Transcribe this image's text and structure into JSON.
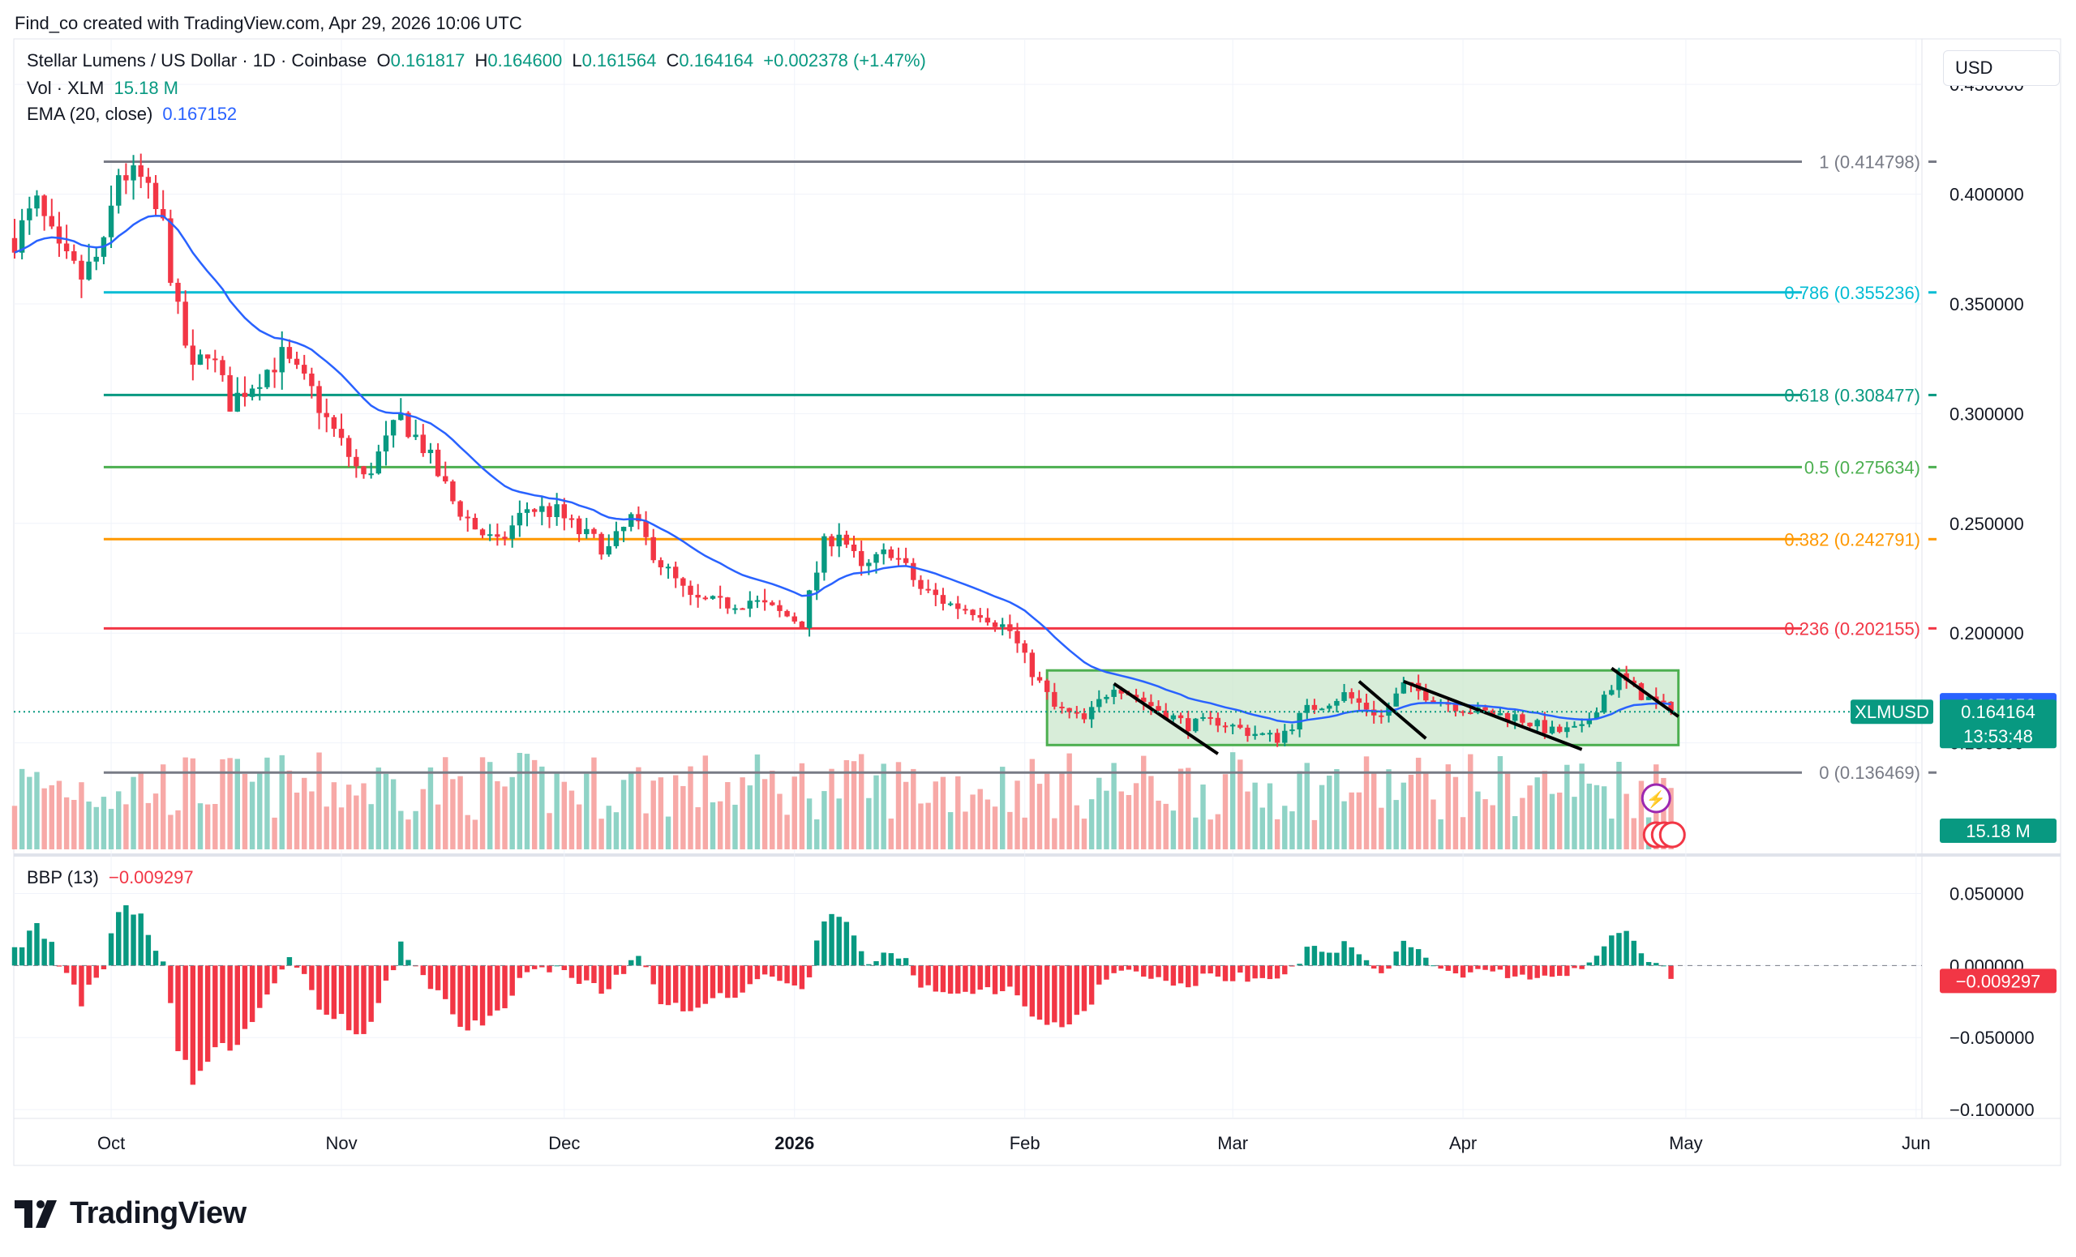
{
  "header": {
    "text": "Find_co created with TradingView.com, Apr 29, 2026 10:06 UTC"
  },
  "legend": {
    "symbol": "Stellar Lumens / US Dollar · 1D · Coinbase",
    "open_label": "O",
    "open": "0.161817",
    "high_label": "H",
    "high": "0.164600",
    "low_label": "L",
    "low": "0.161564",
    "close_label": "C",
    "close": "0.164164",
    "change": "+0.002378 (+1.47%)",
    "vol_label": "Vol · XLM",
    "vol": "15.18 M",
    "ema_label": "EMA (20, close)",
    "ema": "0.167152"
  },
  "bbp_legend": {
    "label": "BBP (13)",
    "value": "−0.009297"
  },
  "currency_button": "USD",
  "price_axis": {
    "ticks": [
      "0.450000",
      "0.400000",
      "0.350000",
      "0.300000",
      "0.250000",
      "0.200000",
      "0.150000"
    ]
  },
  "bbp_axis": {
    "ticks": [
      "0.050000",
      "0.000000",
      "−0.050000",
      "−0.100000"
    ]
  },
  "time_axis": {
    "labels": [
      "Oct",
      "Nov",
      "Dec",
      "2026",
      "Feb",
      "Mar",
      "Apr",
      "May",
      "Jun"
    ]
  },
  "badges": {
    "ema": "0.167152",
    "symbol": "XLMUSD",
    "price": "0.164164",
    "countdown": "13:53:48",
    "volume": "15.18 M",
    "bbp": "−0.009297"
  },
  "colors": {
    "up": "#089981",
    "down": "#f23645",
    "ema": "#2962ff",
    "fib_1": "#787b86",
    "fib_0786": "#00bcd4",
    "fib_0618": "#089981",
    "fib_05": "#4caf50",
    "fib_0382": "#ff9800",
    "fib_0236": "#f23645",
    "fib_0": "#787b86",
    "box_fill": "#c8e6c9",
    "box_border": "#4caf50"
  },
  "logo": {
    "text": "TradingView"
  },
  "chart_data": [
    {
      "type": "candlestick",
      "title": "Stellar Lumens / US Dollar · 1D · Coinbase",
      "ylim": [
        0.1,
        0.47
      ],
      "x_range": [
        "2025-09-18",
        "2026-06-02"
      ],
      "fib_levels": [
        {
          "label": "1 (0.414798)",
          "value": 0.414798,
          "color": "#787b86"
        },
        {
          "label": "0.786 (0.355236)",
          "value": 0.355236,
          "color": "#00bcd4"
        },
        {
          "label": "0.618 (0.308477)",
          "value": 0.308477,
          "color": "#089981"
        },
        {
          "label": "0.5 (0.275634)",
          "value": 0.275634,
          "color": "#4caf50"
        },
        {
          "label": "0.382 (0.242791)",
          "value": 0.242791,
          "color": "#ff9800"
        },
        {
          "label": "0.236 (0.202155)",
          "value": 0.202155,
          "color": "#f23645"
        },
        {
          "label": "0 (0.136469)",
          "value": 0.136469,
          "color": "#787b86"
        }
      ],
      "range_box": {
        "start": "2026-02-04",
        "end": "2026-04-30",
        "low": 0.149,
        "high": 0.183
      },
      "trendlines": [
        {
          "from": [
            "2026-02-13",
            0.177
          ],
          "to": [
            "2026-02-27",
            0.145
          ]
        },
        {
          "from": [
            "2026-03-18",
            0.178
          ],
          "to": [
            "2026-03-27",
            0.152
          ]
        },
        {
          "from": [
            "2026-03-24",
            0.178
          ],
          "to": [
            "2026-04-17",
            0.147
          ]
        },
        {
          "from": [
            "2026-04-21",
            0.184
          ],
          "to": [
            "2026-04-30",
            0.162
          ]
        }
      ],
      "series": [
        {
          "name": "XLMUSD",
          "keypoints": [
            [
              "2025-09-18",
              0.38
            ],
            [
              "2025-09-21",
              0.395
            ],
            [
              "2025-09-24",
              0.372
            ],
            [
              "2025-09-27",
              0.362
            ],
            [
              "2025-09-30",
              0.375
            ],
            [
              "2025-10-02",
              0.41
            ],
            [
              "2025-10-05",
              0.406
            ],
            [
              "2025-10-08",
              0.385
            ],
            [
              "2025-10-10",
              0.345
            ],
            [
              "2025-10-12",
              0.318
            ],
            [
              "2025-10-14",
              0.33
            ],
            [
              "2025-10-17",
              0.305
            ],
            [
              "2025-10-21",
              0.317
            ],
            [
              "2025-10-24",
              0.326
            ],
            [
              "2025-10-28",
              0.31
            ],
            [
              "2025-10-30",
              0.297
            ],
            [
              "2025-11-04",
              0.27
            ],
            [
              "2025-11-09",
              0.298
            ],
            [
              "2025-11-12",
              0.285
            ],
            [
              "2025-11-16",
              0.26
            ],
            [
              "2025-11-19",
              0.248
            ],
            [
              "2025-11-22",
              0.24
            ],
            [
              "2025-11-26",
              0.257
            ],
            [
              "2025-11-30",
              0.255
            ],
            [
              "2025-12-03",
              0.246
            ],
            [
              "2025-12-07",
              0.238
            ],
            [
              "2025-12-10",
              0.252
            ],
            [
              "2025-12-14",
              0.232
            ],
            [
              "2025-12-18",
              0.215
            ],
            [
              "2025-12-22",
              0.213
            ],
            [
              "2025-12-26",
              0.215
            ],
            [
              "2025-12-30",
              0.209
            ],
            [
              "2026-01-02",
              0.205
            ],
            [
              "2026-01-05",
              0.24
            ],
            [
              "2026-01-07",
              0.247
            ],
            [
              "2026-01-10",
              0.228
            ],
            [
              "2026-01-14",
              0.238
            ],
            [
              "2026-01-18",
              0.22
            ],
            [
              "2026-01-22",
              0.213
            ],
            [
              "2026-01-26",
              0.21
            ],
            [
              "2026-01-30",
              0.201
            ],
            [
              "2026-02-01",
              0.188
            ],
            [
              "2026-02-05",
              0.166
            ],
            [
              "2026-02-09",
              0.16
            ],
            [
              "2026-02-13",
              0.177
            ],
            [
              "2026-02-18",
              0.167
            ],
            [
              "2026-02-23",
              0.158
            ],
            [
              "2026-02-27",
              0.16
            ],
            [
              "2026-03-03",
              0.155
            ],
            [
              "2026-03-07",
              0.152
            ],
            [
              "2026-03-11",
              0.165
            ],
            [
              "2026-03-16",
              0.172
            ],
            [
              "2026-03-21",
              0.162
            ],
            [
              "2026-03-24",
              0.176
            ],
            [
              "2026-03-30",
              0.168
            ],
            [
              "2026-04-03",
              0.164
            ],
            [
              "2026-04-08",
              0.162
            ],
            [
              "2026-04-13",
              0.155
            ],
            [
              "2026-04-17",
              0.156
            ],
            [
              "2026-04-20",
              0.172
            ],
            [
              "2026-04-22",
              0.18
            ],
            [
              "2026-04-25",
              0.172
            ],
            [
              "2026-04-29",
              0.164164
            ]
          ]
        },
        {
          "name": "EMA (20, close)",
          "derived": "ema20",
          "last": 0.167152
        }
      ]
    },
    {
      "type": "bar",
      "title": "Vol · XLM",
      "last": "15.18 M"
    },
    {
      "type": "bar",
      "title": "BBP (13)",
      "ylim": [
        -0.105,
        0.075
      ],
      "last": -0.009297
    }
  ]
}
